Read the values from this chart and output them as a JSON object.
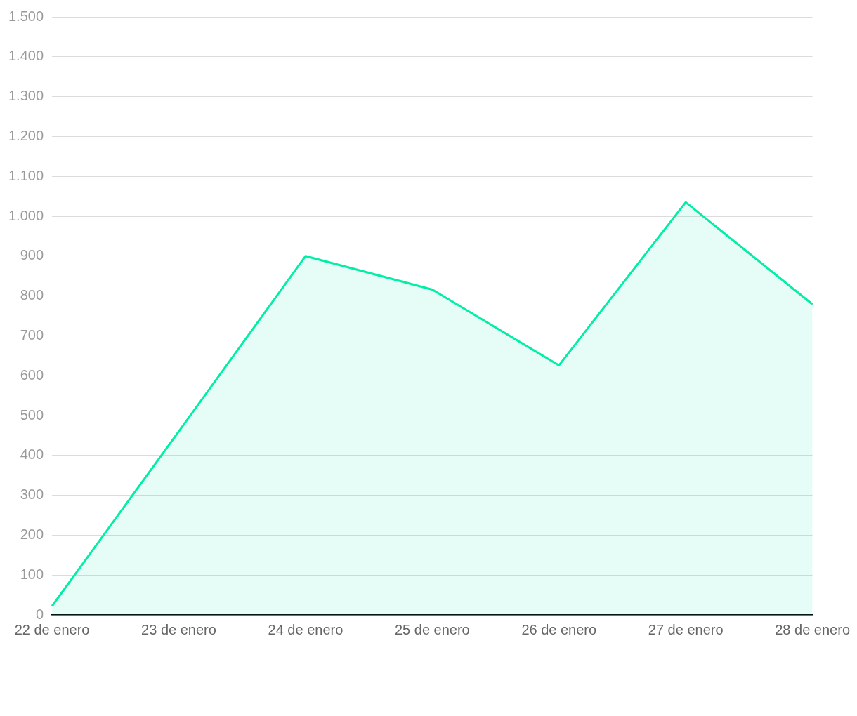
{
  "chart_data": {
    "type": "area",
    "categories": [
      "22 de enero",
      "23 de enero",
      "24 de enero",
      "25 de enero",
      "26 de enero",
      "27 de enero",
      "28 de enero"
    ],
    "series": [
      {
        "color": "#00eea6",
        "values": [
          22,
          460,
          900,
          816,
          626,
          1035,
          779
        ]
      }
    ],
    "ylim": [
      0,
      1500
    ],
    "yticks": [
      0,
      100,
      200,
      300,
      400,
      500,
      600,
      700,
      800,
      900,
      {
        "value": 1000,
        "label": "1.000"
      },
      {
        "value": 1100,
        "label": "1.100"
      },
      {
        "value": 1200,
        "label": "1.200"
      },
      {
        "value": 1300,
        "label": "1.300"
      },
      {
        "value": 1400,
        "label": "1.400"
      },
      {
        "value": 1500,
        "label": "1.500"
      }
    ],
    "grid": "y",
    "legend": false,
    "marker": "none",
    "line_style": "solid"
  }
}
